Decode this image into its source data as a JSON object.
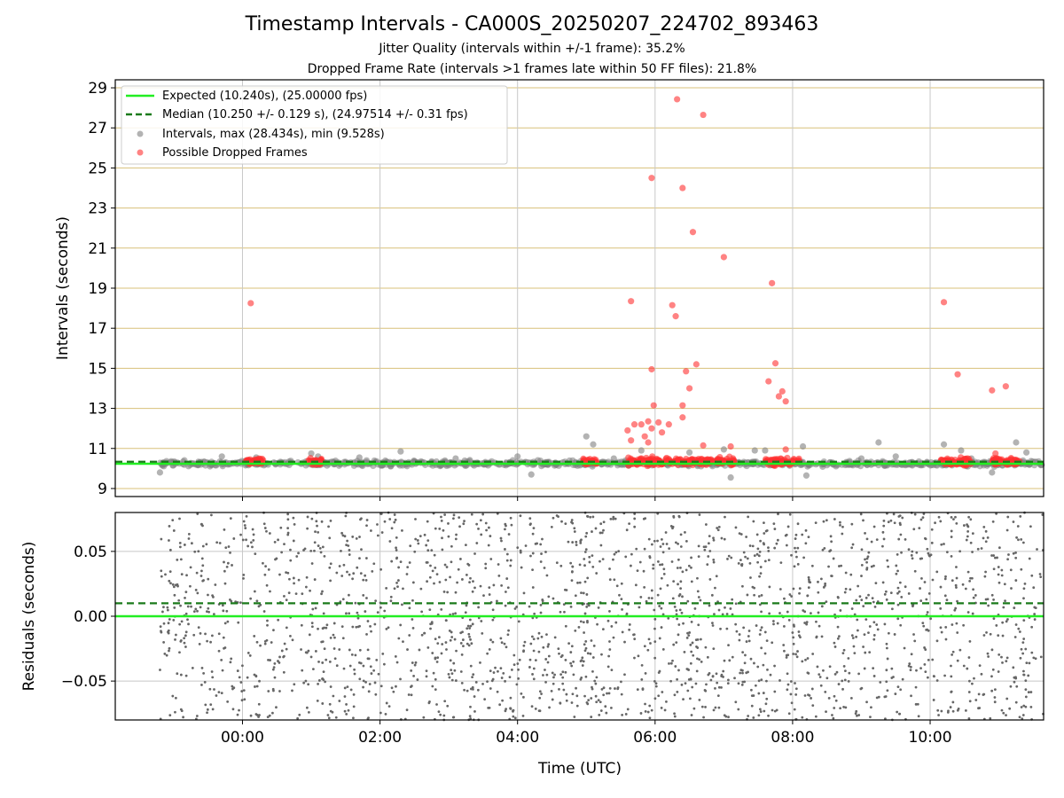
{
  "title": "Timestamp Intervals - CA000S_20250207_224702_893463",
  "subtitle_jitter": "Jitter Quality (intervals within +/-1 frame): 35.2%",
  "subtitle_dropped": "Dropped Frame Rate (intervals >1 frames late within 50 FF files): 21.8%",
  "colors": {
    "expected": "#22ee22",
    "median": "#1a7a1a",
    "intervals": "#808080",
    "dropped": "#ff3030",
    "hgrid_top": "#d8c07a",
    "grid": "#c8c8c8",
    "residuals": "#666666"
  },
  "chart_data": [
    {
      "type": "scatter",
      "ylabel": "Intervals (seconds)",
      "xlabel": "",
      "xlim": [
        -1.85,
        11.65
      ],
      "ylim": [
        8.6,
        29.4
      ],
      "x_ticks": [
        0,
        2,
        4,
        6,
        8,
        10
      ],
      "x_tick_labels": [
        "00:00",
        "02:00",
        "04:00",
        "06:00",
        "08:00",
        "10:00"
      ],
      "y_ticks": [
        9,
        11,
        13,
        15,
        17,
        19,
        21,
        23,
        25,
        27,
        29
      ],
      "y_tick_labels": [
        "9",
        "11",
        "13",
        "15",
        "17",
        "19",
        "21",
        "23",
        "25",
        "27",
        "29"
      ],
      "grid": true,
      "legend_position": "top-left",
      "expected_value": 10.24,
      "median_value": 10.25,
      "legend": [
        "Expected (10.240s), (25.00000 fps)",
        "Median (10.250 +/- 0.129 s), (24.97514 +/- 0.31 fps)",
        "Intervals, max (28.434s), min (9.528s)",
        "Possible Dropped Frames"
      ],
      "series": [
        {
          "name": "Intervals, max (28.434s), min (9.528s)",
          "baseline_x_range": [
            -1.2,
            11.65
          ],
          "baseline_y_center": 10.25,
          "points": [
            [
              -1.2,
              9.8
            ],
            [
              -0.3,
              10.6
            ],
            [
              0.2,
              10.55
            ],
            [
              1.0,
              10.75
            ],
            [
              1.1,
              10.6
            ],
            [
              1.7,
              10.55
            ],
            [
              2.3,
              10.85
            ],
            [
              3.1,
              10.5
            ],
            [
              4.0,
              10.6
            ],
            [
              4.2,
              9.7
            ],
            [
              5.0,
              11.6
            ],
            [
              5.1,
              11.2
            ],
            [
              5.4,
              10.5
            ],
            [
              5.8,
              10.9
            ],
            [
              6.5,
              10.8
            ],
            [
              7.0,
              10.95
            ],
            [
              7.1,
              9.55
            ],
            [
              7.45,
              10.9
            ],
            [
              7.6,
              10.9
            ],
            [
              8.15,
              11.1
            ],
            [
              8.2,
              9.65
            ],
            [
              9.0,
              10.5
            ],
            [
              9.25,
              11.3
            ],
            [
              9.5,
              10.6
            ],
            [
              10.2,
              11.2
            ],
            [
              10.45,
              10.9
            ],
            [
              10.6,
              10.5
            ],
            [
              10.9,
              9.8
            ],
            [
              11.25,
              11.3
            ],
            [
              11.4,
              10.8
            ]
          ]
        },
        {
          "name": "Possible Dropped Frames",
          "points": [
            [
              0.12,
              18.25
            ],
            [
              5.65,
              18.35
            ],
            [
              6.25,
              18.15
            ],
            [
              6.3,
              17.6
            ],
            [
              5.95,
              24.5
            ],
            [
              6.32,
              28.43
            ],
            [
              6.4,
              24.0
            ],
            [
              6.55,
              21.8
            ],
            [
              6.7,
              27.65
            ],
            [
              7.0,
              20.55
            ],
            [
              7.7,
              19.25
            ],
            [
              7.75,
              15.25
            ],
            [
              7.65,
              14.35
            ],
            [
              7.85,
              13.85
            ],
            [
              7.8,
              13.6
            ],
            [
              7.9,
              13.35
            ],
            [
              6.6,
              15.2
            ],
            [
              6.45,
              14.85
            ],
            [
              6.5,
              14.0
            ],
            [
              5.95,
              14.95
            ],
            [
              5.98,
              13.15
            ],
            [
              6.4,
              13.15
            ],
            [
              6.4,
              12.55
            ],
            [
              6.2,
              12.2
            ],
            [
              5.9,
              12.35
            ],
            [
              5.95,
              12.0
            ],
            [
              6.05,
              12.3
            ],
            [
              6.1,
              11.8
            ],
            [
              5.7,
              12.2
            ],
            [
              5.8,
              12.2
            ],
            [
              5.85,
              11.6
            ],
            [
              5.9,
              11.3
            ],
            [
              5.6,
              11.9
            ],
            [
              5.65,
              11.4
            ],
            [
              6.7,
              11.15
            ],
            [
              7.1,
              11.1
            ],
            [
              7.9,
              10.95
            ],
            [
              10.2,
              18.3
            ],
            [
              10.4,
              14.7
            ],
            [
              10.9,
              13.9
            ],
            [
              11.1,
              14.1
            ],
            [
              10.95,
              10.75
            ]
          ],
          "clusters": [
            [
              0.05,
              0.3
            ],
            [
              0.95,
              1.15
            ],
            [
              4.95,
              5.15
            ],
            [
              5.6,
              6.85
            ],
            [
              6.9,
              7.15
            ],
            [
              7.6,
              8.1
            ],
            [
              10.15,
              10.6
            ],
            [
              10.9,
              11.3
            ]
          ]
        }
      ]
    },
    {
      "type": "scatter",
      "ylabel": "Residuals (seconds)",
      "xlabel": "Time (UTC)",
      "xlim": [
        -1.85,
        11.65
      ],
      "ylim": [
        -0.08,
        0.08
      ],
      "x_ticks": [
        0,
        2,
        4,
        6,
        8,
        10
      ],
      "x_tick_labels": [
        "00:00",
        "02:00",
        "04:00",
        "06:00",
        "08:00",
        "10:00"
      ],
      "y_ticks": [
        0.05,
        0.0,
        -0.05
      ],
      "y_tick_labels": [
        "0.05",
        "0.00",
        "−0.05"
      ],
      "grid": true,
      "expected_value": 0.0,
      "median_value": 0.01,
      "series": [
        {
          "name": "",
          "x_range": [
            -1.2,
            11.65
          ],
          "y_range": [
            -0.08,
            0.08
          ],
          "point_count": 2200
        }
      ]
    }
  ]
}
